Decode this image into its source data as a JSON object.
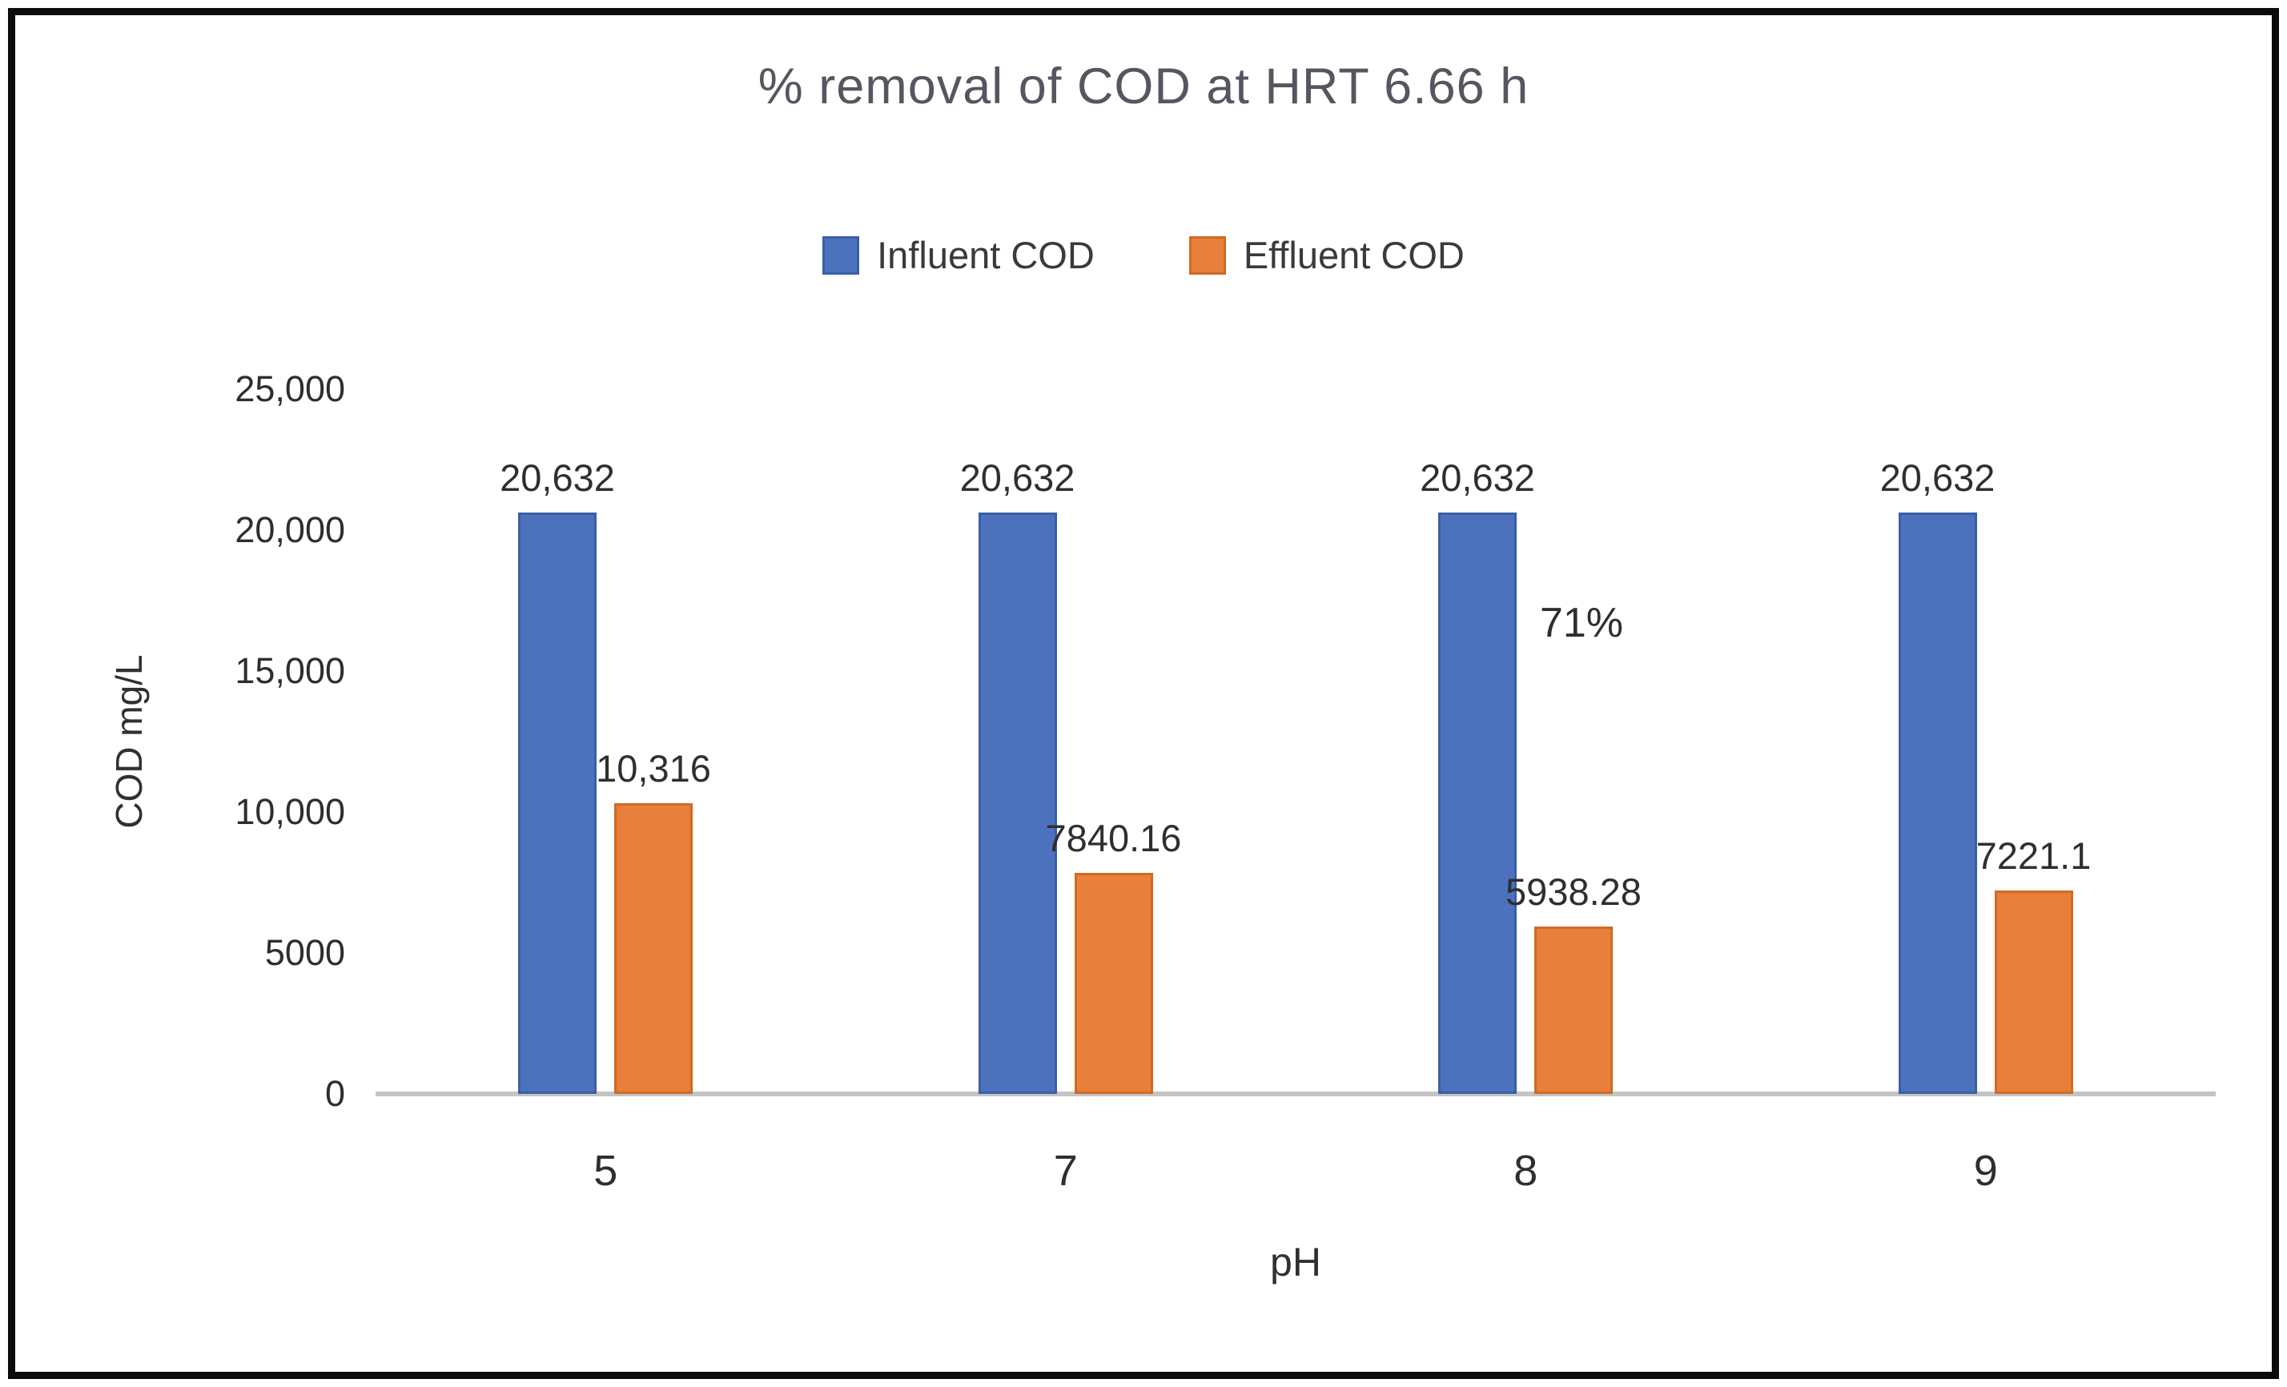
{
  "chart": {
    "title": "% removal of COD at HRT 6.66 h",
    "ylabel": "COD mg/L",
    "xlabel": "pH"
  },
  "chart_data": {
    "type": "bar",
    "title": "% removal of COD at HRT 6.66 h",
    "xlabel": "pH",
    "ylabel": "COD mg/L",
    "categories": [
      "5",
      "7",
      "8",
      "9"
    ],
    "series": [
      {
        "name": "Influent COD",
        "color": "#4c72be",
        "values": [
          20632,
          20632,
          20632,
          20632
        ],
        "labels": [
          "20,632",
          "20,632",
          "20,632",
          "20,632"
        ]
      },
      {
        "name": "Effluent COD",
        "color": "#e8803c",
        "values": [
          10316,
          7840.16,
          5938.28,
          7221.1
        ],
        "labels": [
          "10,316",
          "7840.16",
          "5938.28",
          "7221.1"
        ]
      }
    ],
    "ylim": [
      0,
      25000
    ],
    "yticks": [
      "25,000",
      "20,000",
      "15,000",
      "10,000",
      "5000",
      "0"
    ],
    "grid": false,
    "legend_position": "top-center",
    "annotation": {
      "text": "71%",
      "group_index": 2
    }
  }
}
